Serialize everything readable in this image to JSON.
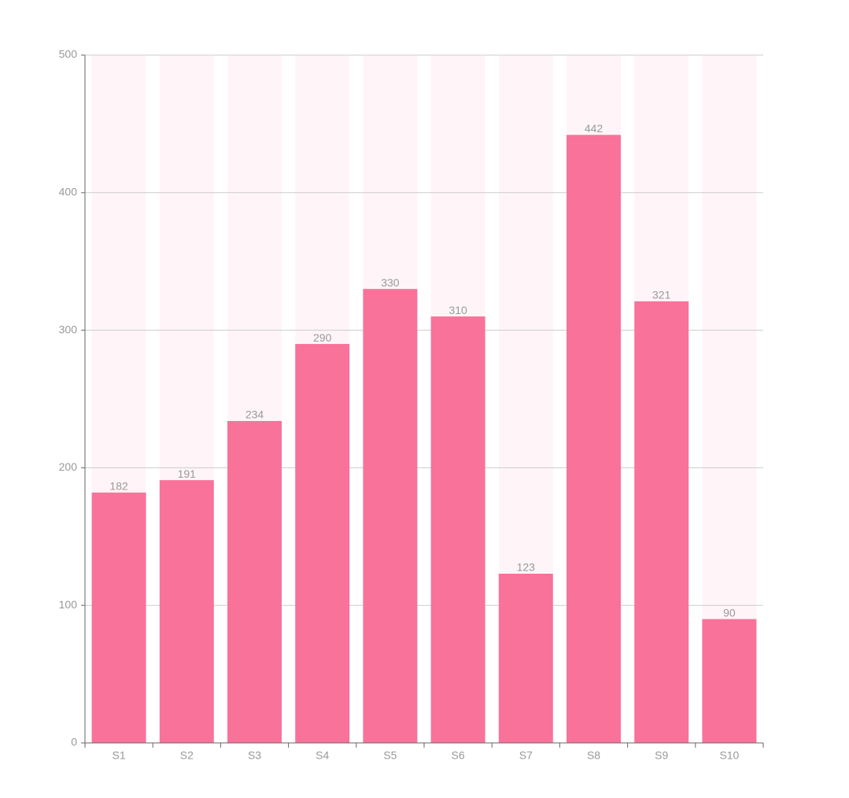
{
  "chart_data": {
    "type": "bar",
    "categories": [
      "S1",
      "S2",
      "S3",
      "S4",
      "S5",
      "S6",
      "S7",
      "S8",
      "S9",
      "S10"
    ],
    "values": [
      182,
      191,
      234,
      290,
      330,
      310,
      123,
      442,
      321,
      90
    ],
    "color": "#f87299",
    "background_color": "#fff5f8",
    "ylim": [
      0,
      500
    ],
    "yticks": [
      0,
      100,
      200,
      300,
      400,
      500
    ],
    "grid": true,
    "data_labels": true
  }
}
